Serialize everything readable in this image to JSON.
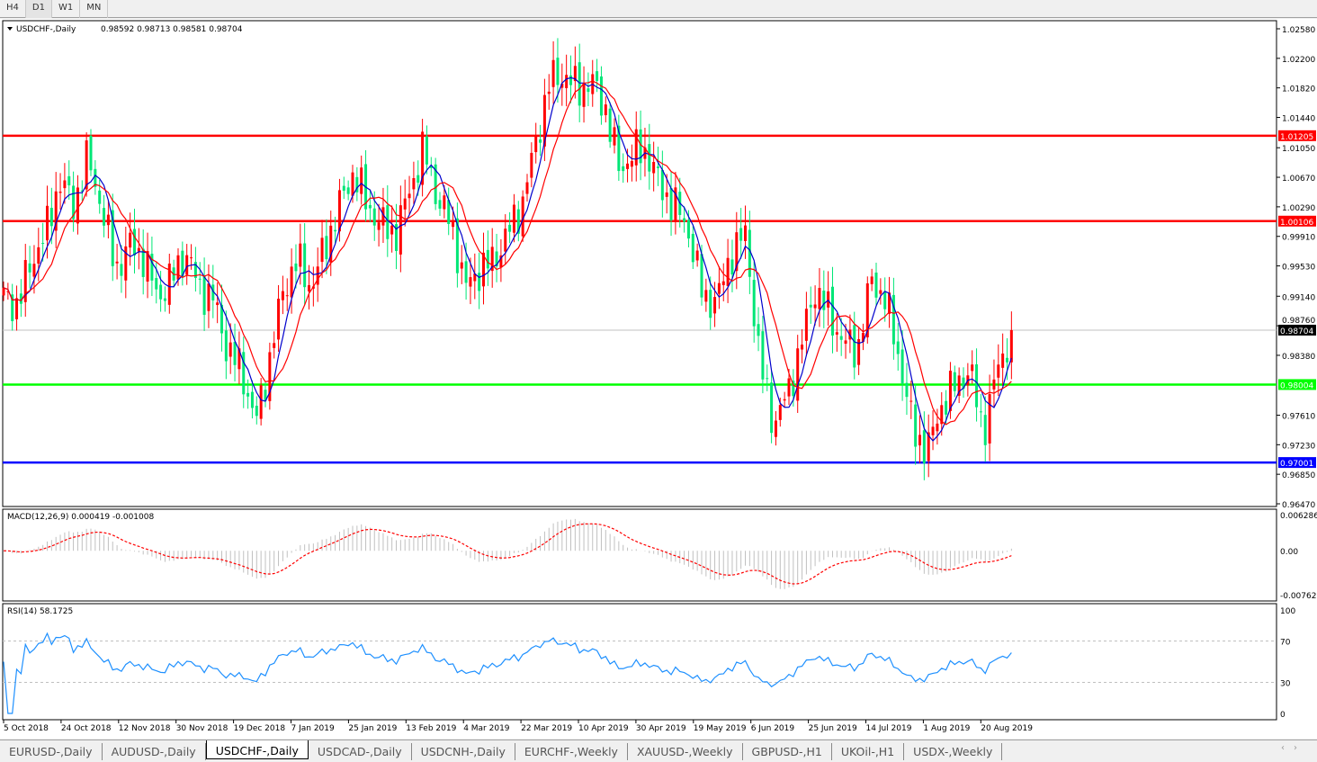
{
  "timeframes": [
    "H4",
    "D1",
    "W1",
    "MN"
  ],
  "active_timeframe": "D1",
  "chart_data": {
    "type": "candlestick",
    "symbol_label": "USDCHF-,Daily",
    "ohlc_label": "0.98592 0.98713 0.98581 0.98704",
    "last_price": 0.98704,
    "last_price_label": "0.98704",
    "ylim": [
      0.9647,
      1.0258
    ],
    "price_ticks": [
      "1.02580",
      "1.02200",
      "1.01820",
      "1.01440",
      "1.01050",
      "1.00670",
      "1.00290",
      "0.99910",
      "0.99530",
      "0.99140",
      "0.98760",
      "0.98380",
      "0.97610",
      "0.97230",
      "0.96850",
      "0.96470"
    ],
    "date_ticks": [
      "5 Oct 2018",
      "24 Oct 2018",
      "12 Nov 2018",
      "30 Nov 2018",
      "19 Dec 2018",
      "7 Jan 2019",
      "25 Jan 2019",
      "13 Feb 2019",
      "4 Mar 2019",
      "22 Mar 2019",
      "10 Apr 2019",
      "30 Apr 2019",
      "19 May 2019",
      "6 Jun 2019",
      "25 Jun 2019",
      "14 Jul 2019",
      "1 Aug 2019",
      "20 Aug 2019"
    ],
    "close_path": [
      0.9913,
      0.9902,
      0.996,
      0.9994,
      1.0064,
      1.003,
      1.0093,
      1.003,
      0.9948,
      0.998,
      0.9965,
      0.9913,
      0.9936,
      0.997,
      0.9925,
      0.991,
      0.9844,
      0.982,
      0.975,
      0.9832,
      0.9925,
      0.996,
      0.9925,
      0.998,
      1.003,
      1.0075,
      1.003,
      1.0006,
      0.9994,
      1.005,
      1.0104,
      1.004,
      1.0006,
      0.9925,
      0.9948,
      0.996,
      0.9994,
      1.003,
      1.011,
      1.019,
      1.02,
      1.018,
      1.019,
      1.0156,
      1.0075,
      1.01,
      1.01,
      1.005,
      1.003,
      0.9994,
      0.991,
      0.991,
      0.997,
      0.9994,
      0.9832,
      0.975,
      0.9786,
      0.9855,
      0.9925,
      0.989,
      0.9855,
      0.9844,
      0.9936,
      0.991,
      0.9832,
      0.974,
      0.9716,
      0.9774,
      0.98,
      0.982,
      0.974,
      0.982,
      0.98704
    ],
    "bull_color": "#ff0000",
    "bear_color": "#00e676",
    "ma_fast_color": "#0000cc",
    "ma_slow_color": "#ff0000",
    "levels": [
      {
        "value": 1.01205,
        "label": "1.01205",
        "color": "#ff0000"
      },
      {
        "value": 1.00106,
        "label": "1.00106",
        "color": "#ff0000"
      },
      {
        "value": 0.98004,
        "label": "0.98004",
        "color": "#00ff00"
      },
      {
        "value": 0.97001,
        "label": "0.97001",
        "color": "#0000ff"
      }
    ],
    "macd": {
      "label": "MACD(12,26,9) 0.000419 -0.001008",
      "ylim": [
        -0.00762,
        0.006286
      ],
      "ticks": [
        "0.006286",
        "0.00",
        "-0.00762"
      ]
    },
    "rsi": {
      "label": "RSI(14) 58.1725",
      "ylim": [
        0,
        100
      ],
      "ticks": [
        "100",
        "70",
        "30",
        "0"
      ],
      "levels": [
        70,
        30
      ],
      "color": "#1e90ff"
    }
  },
  "tabs": [
    "EURUSD-,Daily",
    "AUDUSD-,Daily",
    "USDCHF-,Daily",
    "USDCAD-,Daily",
    "USDCNH-,Daily",
    "EURCHF-,Weekly",
    "XAUUSD-,Weekly",
    "GBPUSD-,H1",
    "UKOil-,H1",
    "USDX-,Weekly"
  ],
  "active_tab": "USDCHF-,Daily",
  "scroll_arrows": "‹›"
}
